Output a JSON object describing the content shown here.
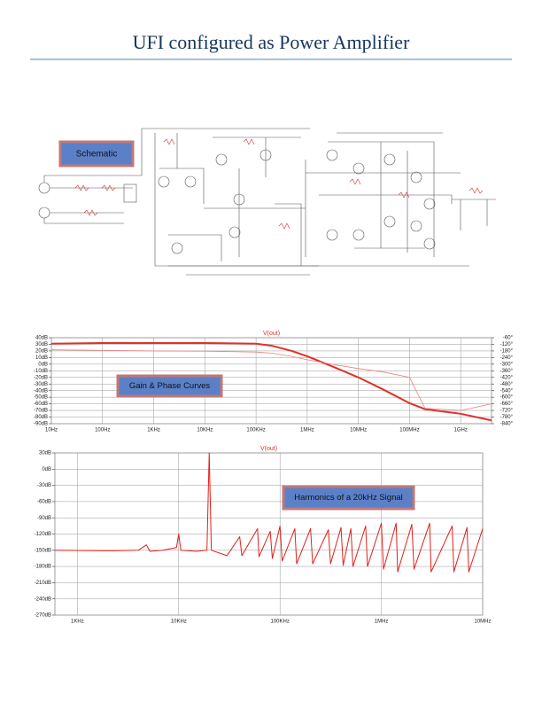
{
  "header": {
    "title": "UFI configured as Power Amplifier"
  },
  "schematic": {
    "label": "Schematic"
  },
  "chart_data": [
    {
      "type": "line",
      "title": "V(out)",
      "annotation": "Gain & Phase Curves",
      "log_x": true,
      "grid": true,
      "x": [
        10,
        100,
        1000,
        10000,
        100000,
        200000,
        500000,
        1000000,
        3000000,
        10000000,
        30000000,
        100000000,
        200000000,
        1000000000,
        4000000000
      ],
      "series": [
        {
          "color": "#e0302a",
          "width": 2,
          "values": [
            31,
            32,
            32,
            32,
            31,
            28,
            20,
            12,
            -3,
            -20,
            -38,
            -59,
            -68,
            -75,
            -85
          ]
        },
        {
          "color": "#e88080",
          "width": 0.8,
          "axis": "y2",
          "values": [
            -170,
            -175,
            -180,
            -182,
            -190,
            -200,
            -230,
            -260,
            -300,
            -340,
            -370,
            -420,
            -700,
            -720,
            -660
          ]
        }
      ],
      "xlim": [
        10,
        4000000000
      ],
      "xticks": [
        {
          "value": 10,
          "label": "10Hz"
        },
        {
          "value": 100,
          "label": "100Hz"
        },
        {
          "value": 1000,
          "label": "1KHz"
        },
        {
          "value": 10000,
          "label": "10KHz"
        },
        {
          "value": 100000,
          "label": "100KHz"
        },
        {
          "value": 1000000,
          "label": "1MHz"
        },
        {
          "value": 10000000,
          "label": "10MHz"
        },
        {
          "value": 100000000,
          "label": "100MHz"
        },
        {
          "value": 1000000000,
          "label": "1GHz"
        }
      ],
      "ylim": [
        -90,
        40
      ],
      "yticks": [
        {
          "value": 40,
          "label": "40dB"
        },
        {
          "value": 30,
          "label": "30dB"
        },
        {
          "value": 20,
          "label": "20dB"
        },
        {
          "value": 10,
          "label": "10dB"
        },
        {
          "value": 0,
          "label": "0dB"
        },
        {
          "value": -10,
          "label": "-10dB"
        },
        {
          "value": -20,
          "label": "-20dB"
        },
        {
          "value": -30,
          "label": "-30dB"
        },
        {
          "value": -40,
          "label": "-40dB"
        },
        {
          "value": -50,
          "label": "-50dB"
        },
        {
          "value": -60,
          "label": "-60dB"
        },
        {
          "value": -70,
          "label": "-70dB"
        },
        {
          "value": -80,
          "label": "-80dB"
        },
        {
          "value": -90,
          "label": "-90dB"
        }
      ],
      "y2lim": [
        -840,
        -60
      ],
      "y2ticks": [
        {
          "value": -60,
          "label": "-60°"
        },
        {
          "value": -120,
          "label": "-120°"
        },
        {
          "value": -180,
          "label": "-180°"
        },
        {
          "value": -240,
          "label": "-240°"
        },
        {
          "value": -300,
          "label": "-300°"
        },
        {
          "value": -360,
          "label": "-360°"
        },
        {
          "value": -420,
          "label": "-420°"
        },
        {
          "value": -480,
          "label": "-480°"
        },
        {
          "value": -540,
          "label": "-540°"
        },
        {
          "value": -600,
          "label": "-600°"
        },
        {
          "value": -660,
          "label": "-660°"
        },
        {
          "value": -720,
          "label": "-720°"
        },
        {
          "value": -780,
          "label": "-780°"
        },
        {
          "value": -840,
          "label": "-840°"
        }
      ]
    },
    {
      "type": "line",
      "title": "V(out)",
      "annotation": "Harmonics of a 20kHz Signal",
      "log_x": true,
      "grid": true,
      "x": [
        600,
        2000,
        4000,
        4800,
        5200,
        7000,
        9500,
        10000,
        10500,
        15000,
        19000,
        20000,
        21000,
        30000,
        40000,
        42000,
        60000,
        62000,
        80000,
        84000,
        100000,
        105000,
        140000,
        146000,
        200000,
        210000,
        300000,
        315000,
        400000,
        420000,
        500000,
        525000,
        700000,
        730000,
        1000000,
        1050000,
        1400000,
        1450000,
        2000000,
        2100000,
        3000000,
        3100000,
        5000000,
        5200000,
        7000000,
        7300000,
        10000000
      ],
      "series": [
        {
          "color": "#e0201a",
          "width": 1,
          "values": [
            -150,
            -151,
            -150,
            -140,
            -152,
            -150,
            -145,
            -120,
            -150,
            -152,
            -150,
            30,
            -150,
            -160,
            -125,
            -160,
            -110,
            -162,
            -115,
            -165,
            -105,
            -170,
            -110,
            -175,
            -110,
            -175,
            -112,
            -175,
            -108,
            -178,
            -110,
            -180,
            -105,
            -180,
            -100,
            -185,
            -100,
            -190,
            -102,
            -185,
            -100,
            -190,
            -105,
            -190,
            -108,
            -190,
            -110
          ]
        }
      ],
      "xlim": [
        600,
        10000000
      ],
      "xticks": [
        {
          "value": 1000,
          "label": "1KHz"
        },
        {
          "value": 10000,
          "label": "10KHz"
        },
        {
          "value": 100000,
          "label": "100KHz"
        },
        {
          "value": 1000000,
          "label": "1MHz"
        },
        {
          "value": 10000000,
          "label": "10MHz"
        }
      ],
      "ylim": [
        -270,
        30
      ],
      "yticks": [
        {
          "value": 30,
          "label": "30dB"
        },
        {
          "value": 0,
          "label": "0dB"
        },
        {
          "value": -30,
          "label": "-30dB"
        },
        {
          "value": -60,
          "label": "-60dB"
        },
        {
          "value": -90,
          "label": "-90dB"
        },
        {
          "value": -120,
          "label": "-120dB"
        },
        {
          "value": -150,
          "label": "-150dB"
        },
        {
          "value": -180,
          "label": "-180dB"
        },
        {
          "value": -210,
          "label": "-210dB"
        },
        {
          "value": -240,
          "label": "-240dB"
        },
        {
          "value": -270,
          "label": "-270dB"
        }
      ]
    }
  ]
}
